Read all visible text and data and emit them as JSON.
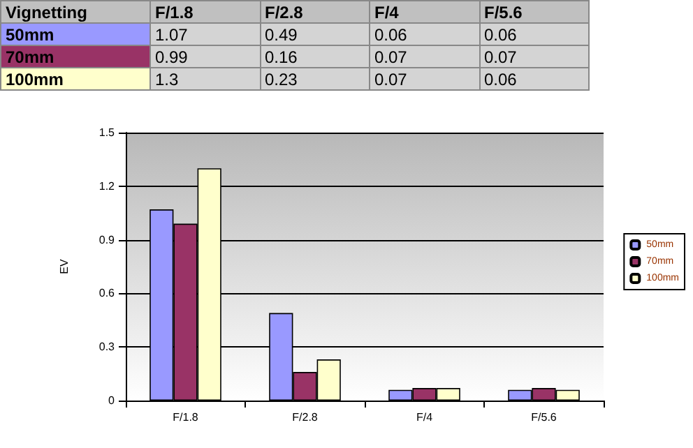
{
  "chart_data": {
    "type": "bar",
    "title": "Vignetting",
    "ylabel": "EV",
    "categories": [
      "F/1.8",
      "F/2.8",
      "F/4",
      "F/5.6"
    ],
    "series": [
      {
        "name": "50mm",
        "color": "#9999ff",
        "values": [
          1.07,
          0.49,
          0.06,
          0.06
        ]
      },
      {
        "name": "70mm",
        "color": "#993366",
        "values": [
          0.99,
          0.16,
          0.07,
          0.07
        ]
      },
      {
        "name": "100mm",
        "color": "#ffffcc",
        "values": [
          1.3,
          0.23,
          0.07,
          0.06
        ]
      }
    ],
    "ylim": [
      0,
      1.5
    ],
    "yticks": [
      0,
      0.3,
      0.6,
      0.9,
      1.2,
      1.5
    ],
    "grid": "y",
    "legend": "right",
    "data_labels": true
  }
}
